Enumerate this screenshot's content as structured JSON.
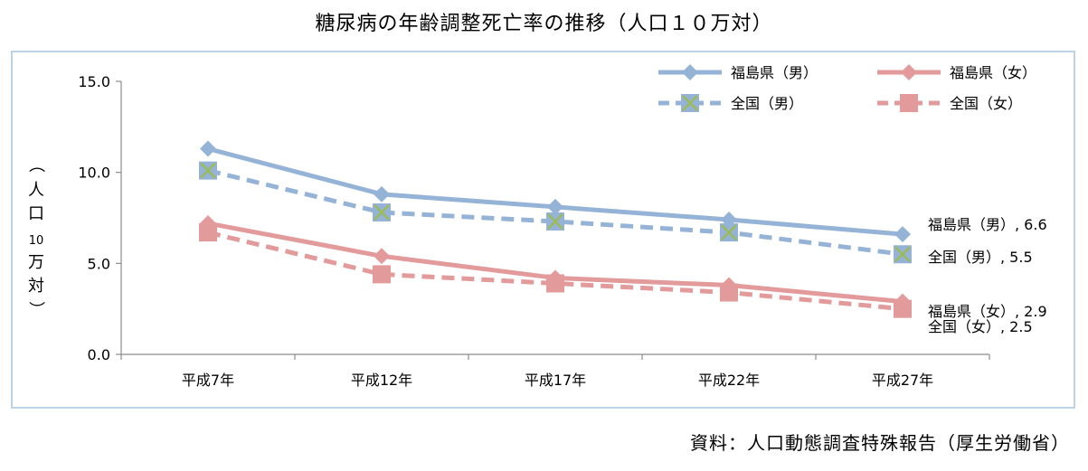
{
  "title": "糖尿病の年齢調整死亡率の推移（人口１０万対）",
  "source": "資料：人口動態調査特殊報告（厚生労働省）",
  "colors": {
    "blue": "#95b3d7",
    "red": "#e29a9a",
    "marker_cross": "#9bbb59"
  },
  "chart_data": {
    "type": "line",
    "title": "糖尿病の年齢調整死亡率の推移（人口１０万対）",
    "ylabel_chars": [
      "（",
      "人",
      "口",
      "10",
      "万",
      "対",
      "）"
    ],
    "ylim": [
      0,
      15
    ],
    "yticks": [
      "0.0",
      "5.0",
      "10.0",
      "15.0"
    ],
    "ytick_values": [
      0,
      5,
      10,
      15
    ],
    "categories": [
      "平成7年",
      "平成12年",
      "平成17年",
      "平成22年",
      "平成27年"
    ],
    "legend_position": "top-right",
    "series": [
      {
        "name": "福島県（男）",
        "values": [
          11.3,
          8.8,
          8.1,
          7.4,
          6.6
        ],
        "style": "solid",
        "color": "#95b3d7",
        "marker": "diamond",
        "end_label": "福島県（男）, 6.6"
      },
      {
        "name": "福島県（女）",
        "values": [
          7.2,
          5.4,
          4.2,
          3.8,
          2.9
        ],
        "style": "solid",
        "color": "#e29a9a",
        "marker": "diamond",
        "end_label": "福島県（女）, 2.9"
      },
      {
        "name": "全国（男）",
        "values": [
          10.1,
          7.8,
          7.3,
          6.7,
          5.5
        ],
        "style": "dashed",
        "color": "#95b3d7",
        "marker": "square-cross",
        "end_label": "全国（男）, 5.5"
      },
      {
        "name": "全国（女）",
        "values": [
          6.7,
          4.4,
          3.9,
          3.4,
          2.5
        ],
        "style": "dashed",
        "color": "#e29a9a",
        "marker": "square",
        "end_label": "全国（女）, 2.5"
      }
    ]
  }
}
